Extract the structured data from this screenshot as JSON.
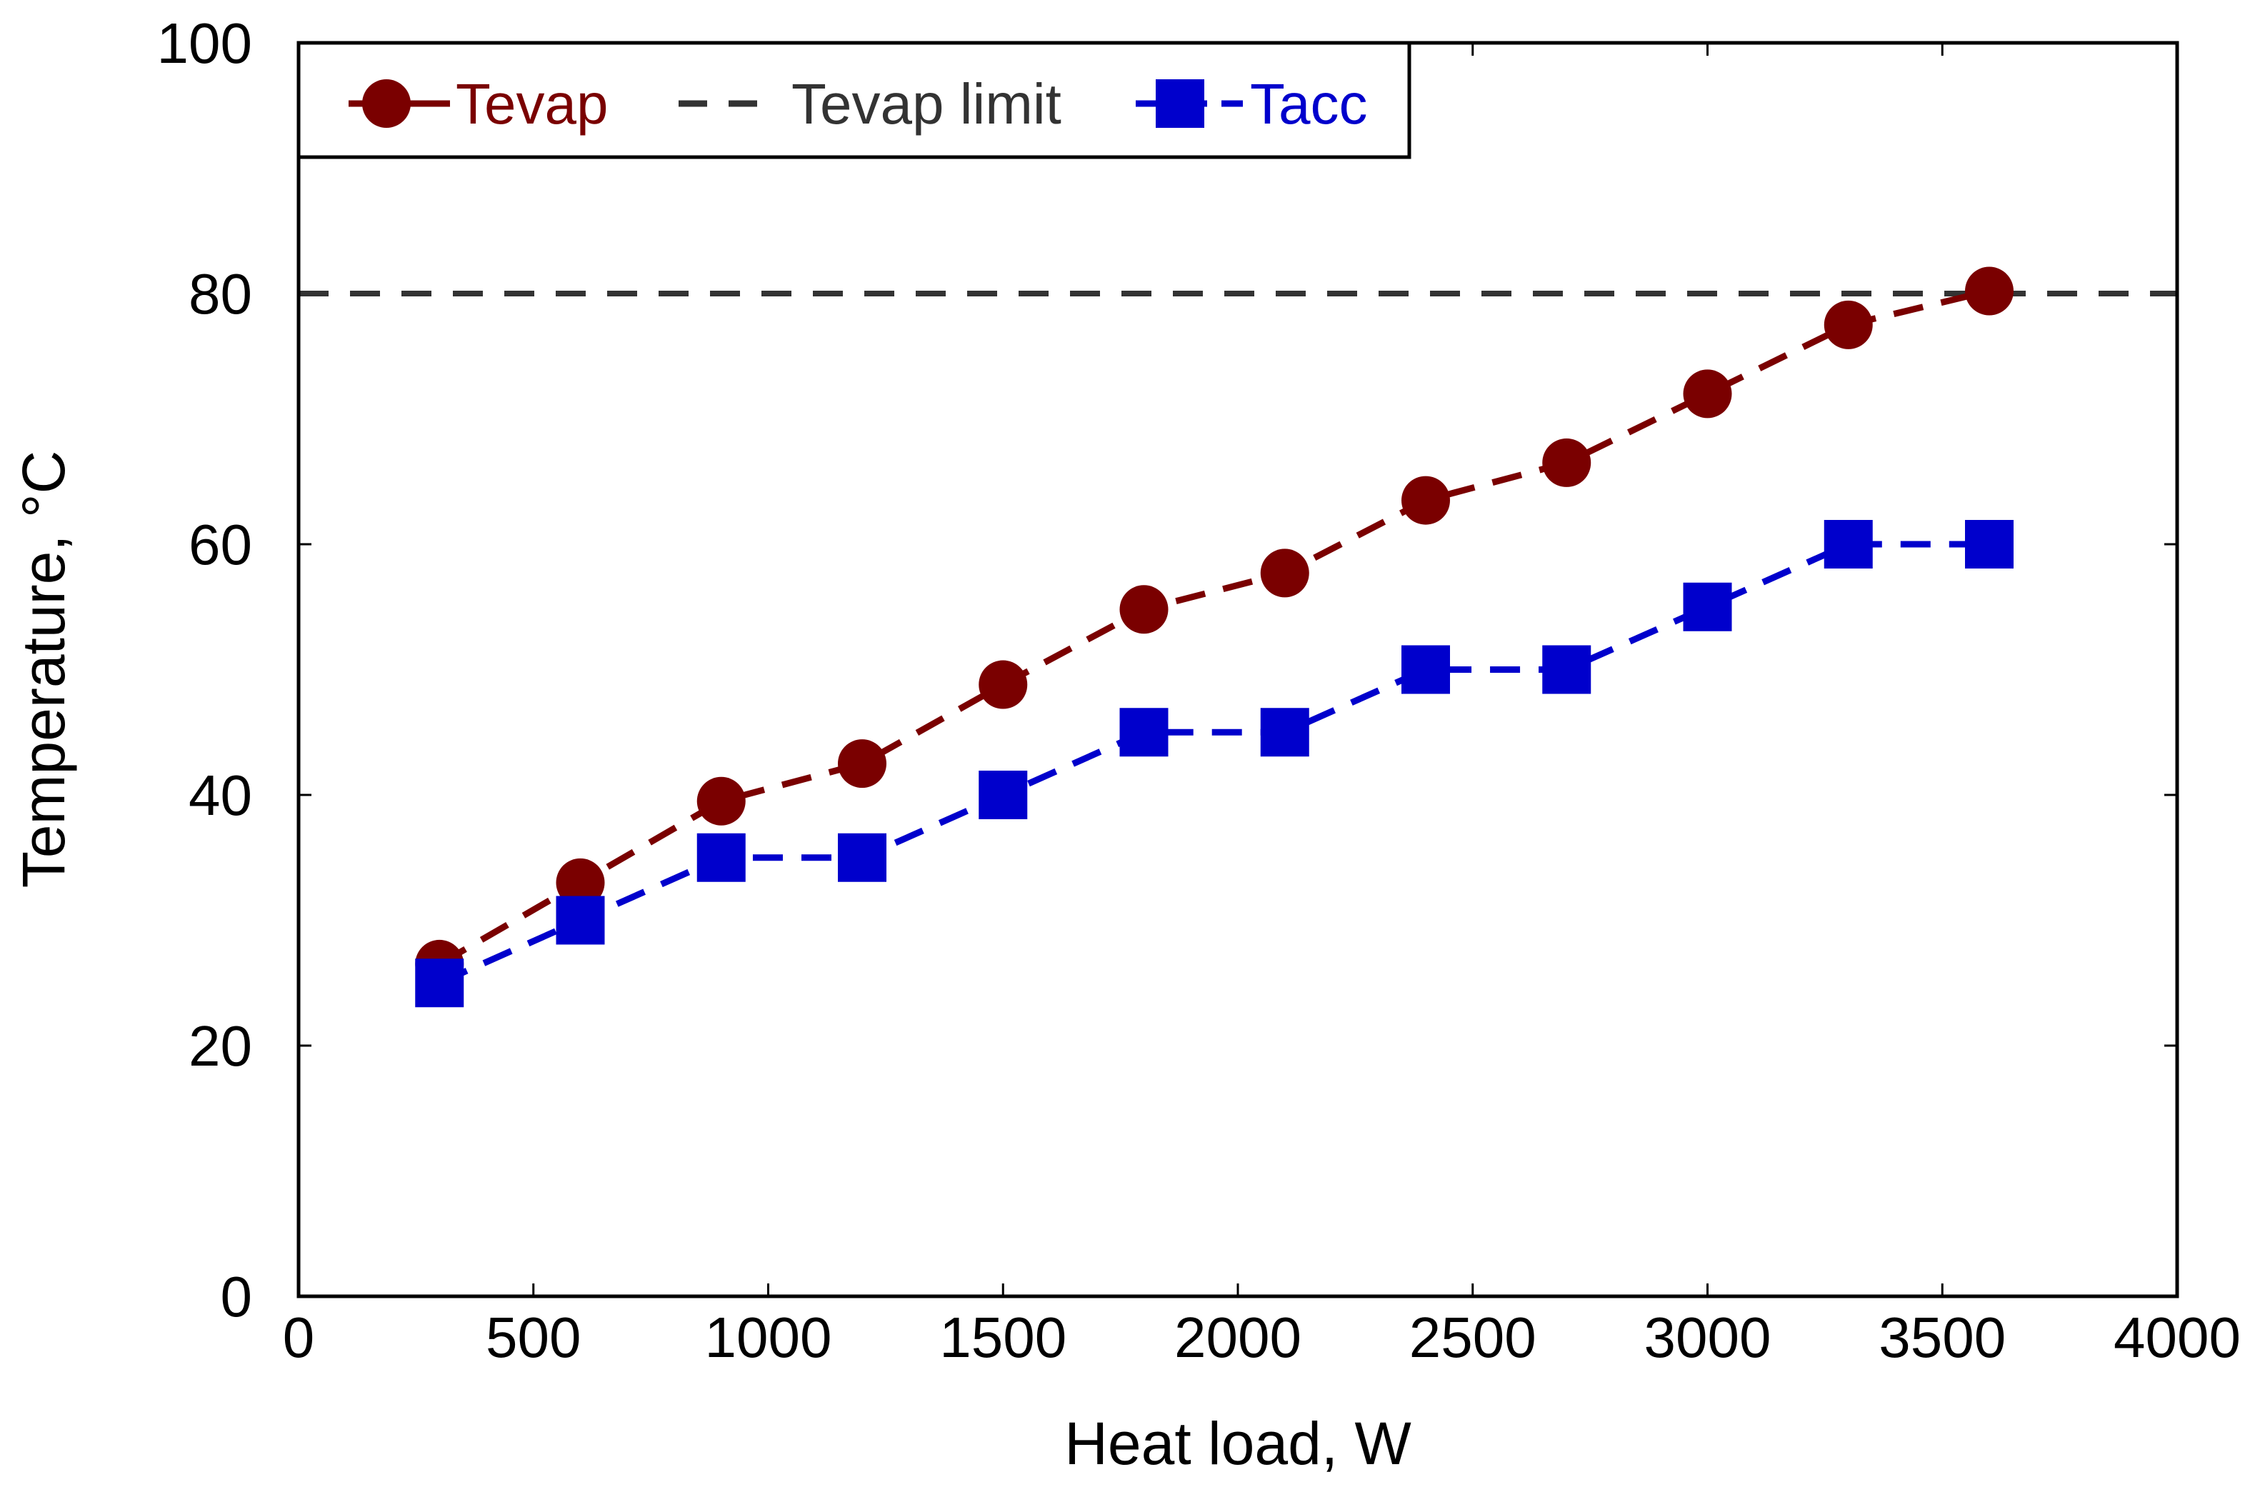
{
  "chart_data": {
    "type": "line",
    "title": "",
    "xlabel": "Heat load, W",
    "ylabel": "Temperature, °C",
    "xlim": [
      0,
      4000
    ],
    "ylim": [
      0,
      100
    ],
    "xticks": [
      0,
      500,
      1000,
      1500,
      2000,
      2500,
      3000,
      3500,
      4000
    ],
    "yticks": [
      0,
      20,
      40,
      60,
      80,
      100
    ],
    "grid": false,
    "legend_position": "top-left",
    "series": [
      {
        "name": "Tevap",
        "color": "#7a0000",
        "marker": "circle",
        "line": "dashed",
        "x": [
          300,
          600,
          900,
          1200,
          1500,
          1800,
          2100,
          2400,
          2700,
          3000,
          3300,
          3600
        ],
        "y": [
          26.5,
          33,
          39.5,
          42.5,
          48.8,
          54.8,
          57.7,
          63.5,
          66.5,
          72,
          77.5,
          80.2
        ]
      },
      {
        "name": "Tevap limit",
        "color": "#333333",
        "marker": "none",
        "line": "dashed",
        "constant_y": 80
      },
      {
        "name": "Tacc",
        "color": "#0000cc",
        "marker": "square",
        "line": "dashed",
        "x": [
          300,
          600,
          900,
          1200,
          1500,
          1800,
          2100,
          2400,
          2700,
          3000,
          3300,
          3600
        ],
        "y": [
          25,
          30,
          35,
          35,
          40,
          45,
          45,
          50,
          50,
          55,
          60,
          60
        ]
      }
    ]
  }
}
